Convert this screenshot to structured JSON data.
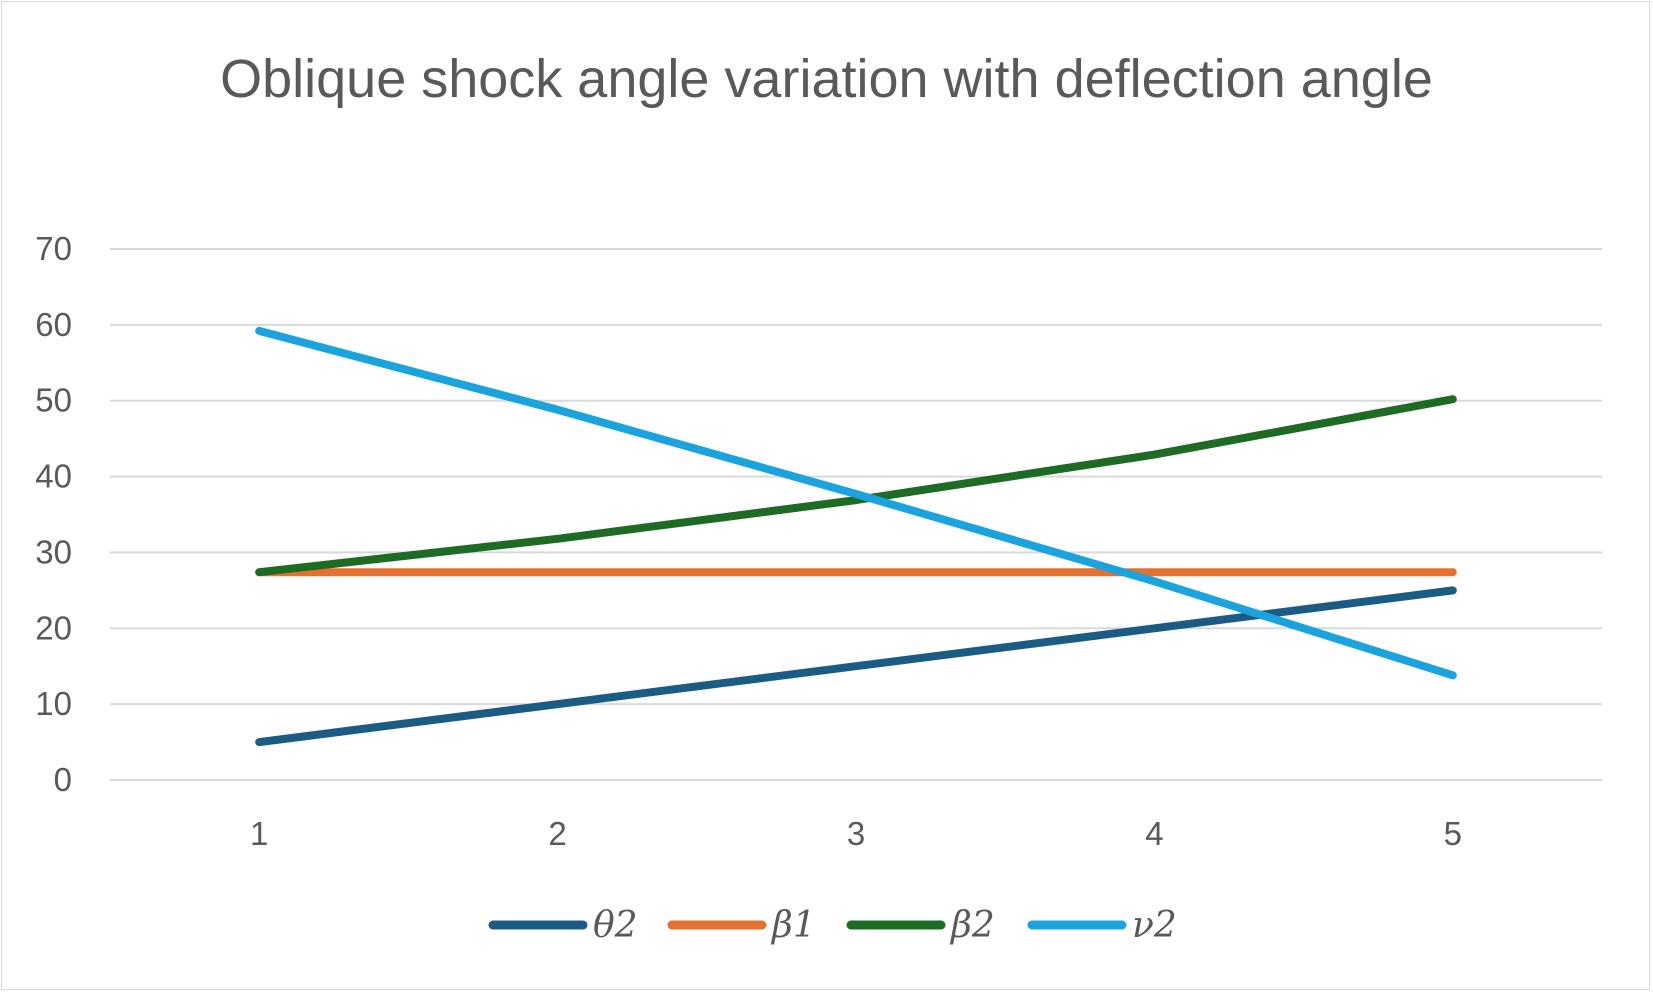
{
  "chart_data": {
    "type": "line",
    "title": "Oblique shock angle variation with deflection angle",
    "xlabel": "",
    "ylabel": "",
    "categories": [
      "1",
      "2",
      "3",
      "4",
      "5"
    ],
    "ylim": [
      0,
      70
    ],
    "yticks": [
      "0",
      "10",
      "20",
      "30",
      "40",
      "50",
      "60",
      "70"
    ],
    "grid": true,
    "legend_position": "bottom",
    "series": [
      {
        "name": "θ2",
        "color": "#1b5c84",
        "values": [
          5,
          10,
          15,
          20,
          25
        ]
      },
      {
        "name": "β1",
        "color": "#e4712f",
        "values": [
          27.4,
          27.4,
          27.4,
          27.4,
          27.4
        ]
      },
      {
        "name": "β2",
        "color": "#1e6b23",
        "values": [
          27.4,
          31.8,
          36.9,
          42.9,
          50.2
        ]
      },
      {
        "name": "ν2",
        "color": "#1aa3dd",
        "values": [
          59.2,
          48.8,
          37.7,
          26.2,
          13.8
        ]
      }
    ]
  }
}
